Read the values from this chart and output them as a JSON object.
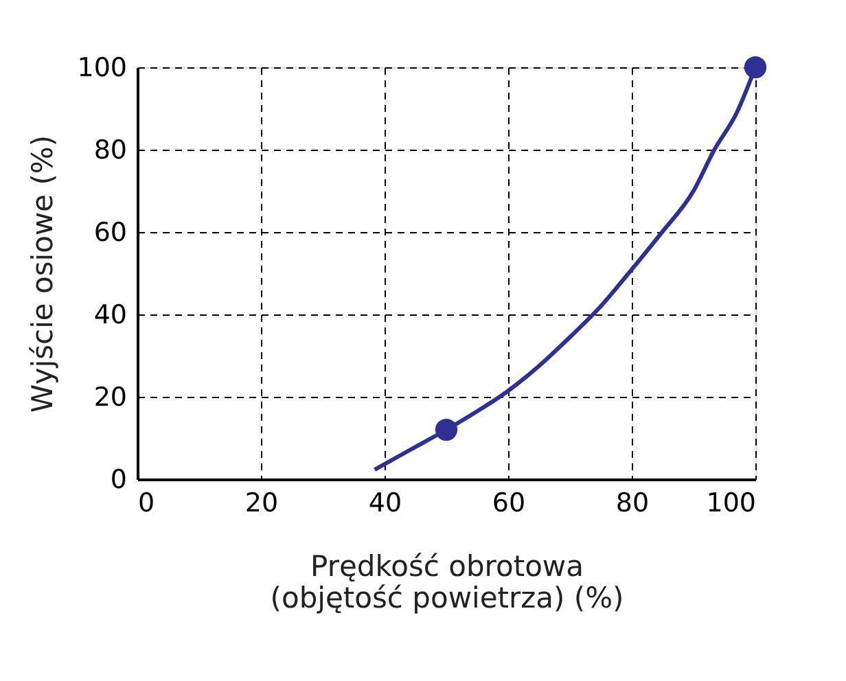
{
  "chart_data": {
    "type": "line",
    "xlabel": "Prędkość obrotowa\n(objętość powietrza) (%)",
    "ylabel": "Wyjście osiowe (%)",
    "xlim": [
      0,
      100
    ],
    "ylim": [
      0,
      100
    ],
    "xticks": [
      0,
      20,
      40,
      60,
      80,
      100
    ],
    "yticks": [
      0,
      20,
      40,
      60,
      80,
      100
    ],
    "grid": true,
    "series": [
      {
        "color": "#2e3192",
        "marker": "none",
        "line_style": "solid",
        "x": [
          38.4,
          44,
          50,
          55,
          59.6,
          65,
          70,
          75,
          79.5,
          84.7,
          90,
          93.3,
          97,
          100
        ],
        "values": [
          2.3,
          7,
          12,
          16.5,
          21,
          27.5,
          34.5,
          42,
          50,
          59.6,
          70,
          79.8,
          89,
          100
        ]
      },
      {
        "type": "scatter",
        "color": "#2e3192",
        "marker": "circle",
        "x": [
          50,
          100
        ],
        "values": [
          12,
          100
        ]
      }
    ]
  }
}
